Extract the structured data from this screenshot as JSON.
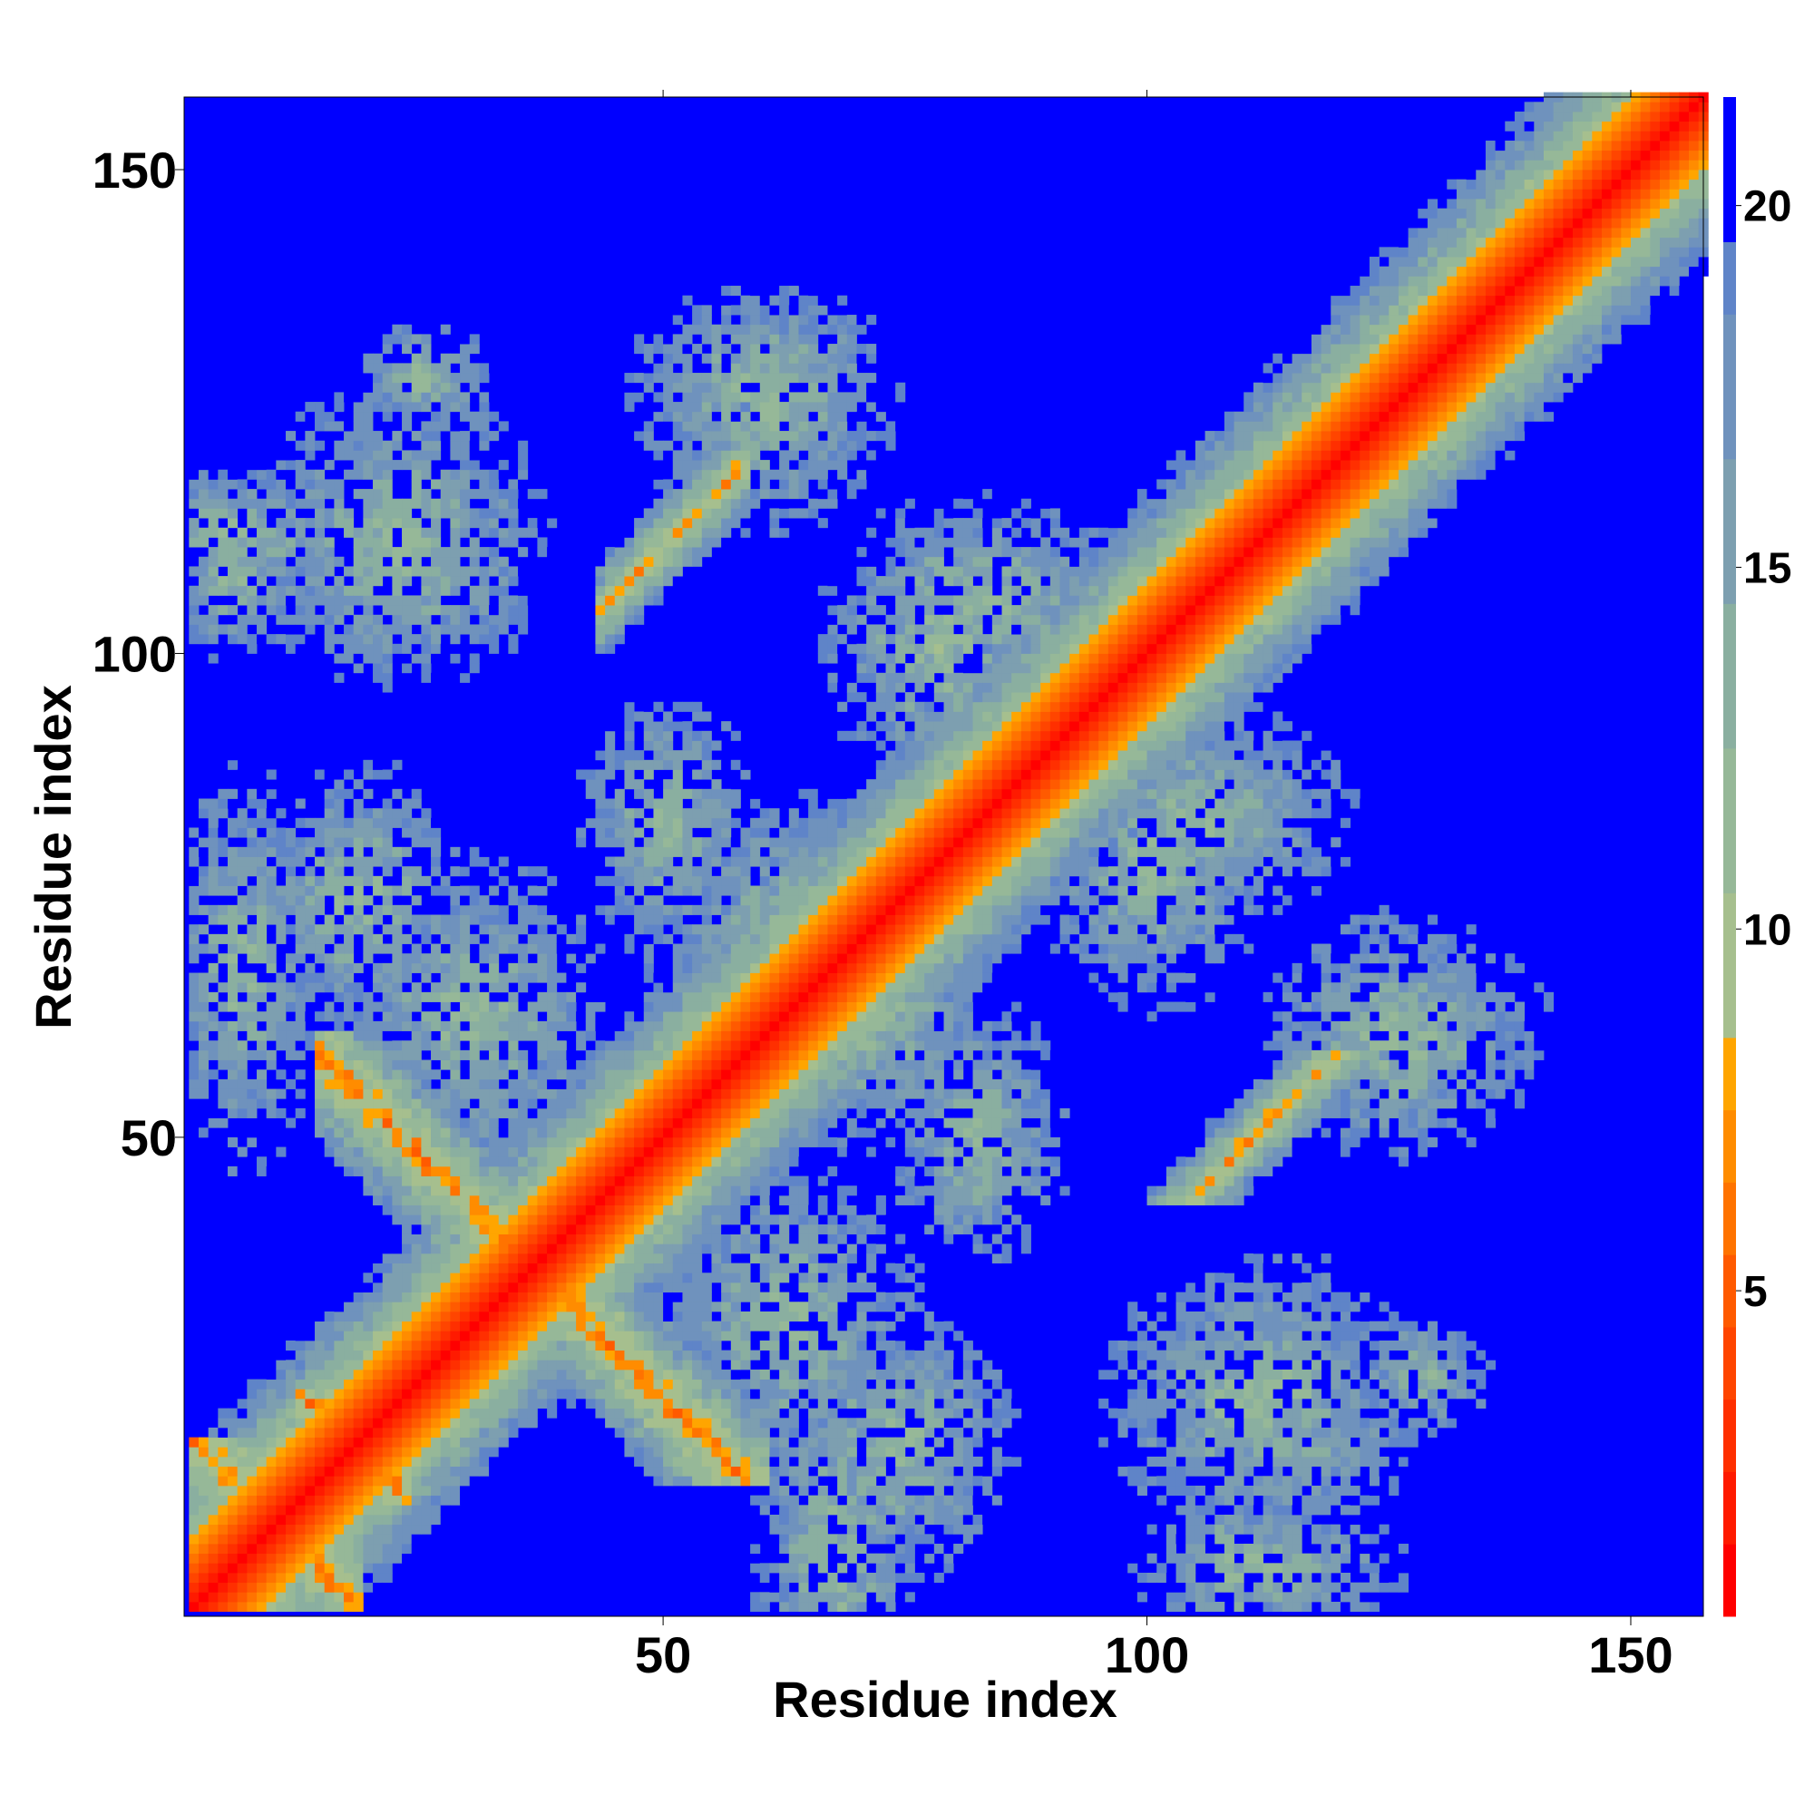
{
  "chart_data": {
    "type": "heatmap",
    "title": "",
    "xlabel": "Residue index",
    "ylabel": "Residue index",
    "n_residues": 157,
    "xlim": [
      1,
      157
    ],
    "ylim": [
      1,
      157
    ],
    "x_ticks": [
      50,
      100,
      150
    ],
    "y_ticks": [
      50,
      100,
      150
    ],
    "colorbar": {
      "ticks": [
        5,
        10,
        15,
        20
      ],
      "range": [
        0.5,
        21.5
      ],
      "levels": [
        {
          "upper": 1.5,
          "color": "#ff0000"
        },
        {
          "upper": 2.5,
          "color": "#ff1a00"
        },
        {
          "upper": 3.5,
          "color": "#ff2f00"
        },
        {
          "upper": 4.5,
          "color": "#ff4500"
        },
        {
          "upper": 5.5,
          "color": "#ff5a00"
        },
        {
          "upper": 6.5,
          "color": "#ff7300"
        },
        {
          "upper": 7.5,
          "color": "#ff8c00"
        },
        {
          "upper": 8.5,
          "color": "#ffa500"
        },
        {
          "upper": 10.5,
          "color": "#a6bf8e"
        },
        {
          "upper": 12.5,
          "color": "#96b898"
        },
        {
          "upper": 14.5,
          "color": "#8aafa0"
        },
        {
          "upper": 16.5,
          "color": "#7d9fb0"
        },
        {
          "upper": 18.5,
          "color": "#6f92bd"
        },
        {
          "upper": 19.5,
          "color": "#5f84c8"
        },
        {
          "upper": 21.5,
          "color": "#0000ff"
        }
      ]
    },
    "background_value": 21,
    "features": [
      {
        "kind": "diagonal",
        "from": 1,
        "to": 157
      },
      {
        "kind": "antiparallel",
        "center_sum": 72,
        "from_i": 14,
        "to_i": 60
      },
      {
        "kind": "antiparallel",
        "center_sum": 19,
        "from_i": 1,
        "to_i": 18
      },
      {
        "kind": "antiparallel",
        "center_sum": 35,
        "from_i": 12,
        "to_i": 23
      },
      {
        "kind": "parallel",
        "offset": 61,
        "from_i": 43,
        "to_i": 58
      },
      {
        "kind": "cluster",
        "x": 22,
        "y": 110,
        "rx": 13,
        "ry": 12
      },
      {
        "kind": "cluster",
        "x": 6,
        "y": 67,
        "rx": 7,
        "ry": 18
      },
      {
        "kind": "cluster",
        "x": 5,
        "y": 108,
        "rx": 6,
        "ry": 8
      },
      {
        "kind": "cluster",
        "x": 62,
        "y": 30,
        "rx": 12,
        "ry": 14
      },
      {
        "kind": "cluster",
        "x": 74,
        "y": 18,
        "rx": 10,
        "ry": 12
      },
      {
        "kind": "cluster",
        "x": 50,
        "y": 82,
        "rx": 8,
        "ry": 12
      },
      {
        "kind": "cluster",
        "x": 71,
        "y": 62,
        "rx": 12,
        "ry": 12
      },
      {
        "kind": "cluster",
        "x": 60,
        "y": 127,
        "rx": 12,
        "ry": 9
      },
      {
        "kind": "cluster",
        "x": 78,
        "y": 100,
        "rx": 10,
        "ry": 13
      },
      {
        "kind": "cluster",
        "x": 105,
        "y": 83,
        "rx": 14,
        "ry": 9
      },
      {
        "kind": "cluster",
        "x": 125,
        "y": 60,
        "rx": 11,
        "ry": 11
      },
      {
        "kind": "cluster",
        "x": 112,
        "y": 22,
        "rx": 13,
        "ry": 13
      },
      {
        "kind": "cluster",
        "x": 112,
        "y": 5,
        "rx": 12,
        "ry": 6
      },
      {
        "kind": "cluster",
        "x": 25,
        "y": 128,
        "rx": 6,
        "ry": 5
      }
    ]
  }
}
